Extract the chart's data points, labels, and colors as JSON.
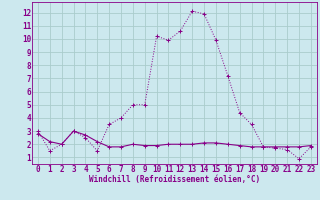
{
  "title": "",
  "xlabel": "Windchill (Refroidissement éolien,°C)",
  "background_color": "#cce8ee",
  "line_color": "#880088",
  "grid_color": "#aacccc",
  "x_ticks": [
    0,
    1,
    2,
    3,
    4,
    5,
    6,
    7,
    8,
    9,
    10,
    11,
    12,
    13,
    14,
    15,
    16,
    17,
    18,
    19,
    20,
    21,
    22,
    23
  ],
  "y_ticks": [
    1,
    2,
    3,
    4,
    5,
    6,
    7,
    8,
    9,
    10,
    11,
    12
  ],
  "ylim": [
    0.5,
    12.8
  ],
  "xlim": [
    -0.5,
    23.5
  ],
  "line1_x": [
    0,
    1,
    2,
    3,
    4,
    5,
    6,
    7,
    8,
    9,
    10,
    11,
    12,
    13,
    14,
    15,
    16,
    17,
    18,
    19,
    20,
    21,
    22,
    23
  ],
  "line1_y": [
    3.0,
    1.5,
    2.0,
    3.0,
    2.5,
    1.5,
    3.5,
    4.0,
    5.0,
    5.0,
    10.2,
    9.9,
    10.6,
    12.1,
    11.9,
    9.9,
    7.2,
    4.4,
    3.5,
    1.8,
    1.7,
    1.6,
    0.9,
    1.8
  ],
  "line2_x": [
    0,
    1,
    2,
    3,
    4,
    5,
    6,
    7,
    8,
    9,
    10,
    11,
    12,
    13,
    14,
    15,
    16,
    17,
    18,
    19,
    20,
    21,
    22,
    23
  ],
  "line2_y": [
    2.8,
    2.2,
    2.0,
    3.0,
    2.7,
    2.2,
    1.8,
    1.8,
    2.0,
    1.9,
    1.9,
    2.0,
    2.0,
    2.0,
    2.1,
    2.1,
    2.0,
    1.9,
    1.8,
    1.8,
    1.8,
    1.8,
    1.8,
    1.9
  ],
  "tick_fontsize": 5.5,
  "xlabel_fontsize": 5.5
}
